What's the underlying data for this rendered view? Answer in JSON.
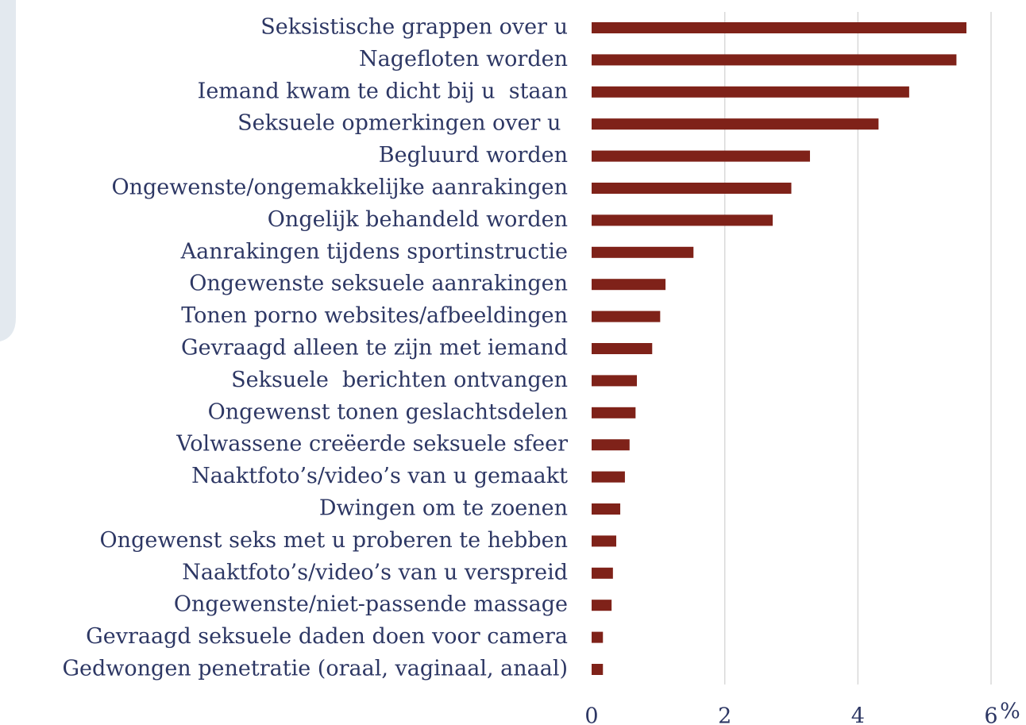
{
  "chart_data": {
    "type": "barh",
    "categories": [
      "Seksistische grappen over u",
      "Nagefloten worden",
      "Iemand kwam te dicht bij u  staan",
      "Seksuele opmerkingen over u ",
      "Begluurd worden",
      "Ongewenste/ongemakkelijke aanrakingen",
      "Ongelijk behandeld worden",
      "Aanrakingen tijdens sportinstructie",
      "Ongewenste seksuele aanrakingen",
      "Tonen porno websites/afbeeldingen",
      "Gevraagd alleen te zijn met iemand",
      "Seksuele  berichten ontvangen",
      "Ongewenst tonen geslachtsdelen",
      "Volwassene creëerde seksuele sfeer",
      "Naaktfoto’s/video’s van u gemaakt",
      "Dwingen om te zoenen",
      "Ongewenst seks met u proberen te hebben",
      "Naaktfoto’s/video’s van u verspreid",
      "Ongewenste/niet-passende massage",
      "Gevraagd seksuele daden doen voor camera",
      "Gedwongen penetratie (oraal, vaginaal, anaal)"
    ],
    "values": [
      5.63,
      5.48,
      4.77,
      4.31,
      3.28,
      3.0,
      2.72,
      1.53,
      1.11,
      1.03,
      0.91,
      0.68,
      0.66,
      0.57,
      0.5,
      0.43,
      0.37,
      0.32,
      0.3,
      0.17,
      0.17
    ],
    "color": "#7f2219",
    "xlabel": "%",
    "xlim": [
      0,
      6
    ],
    "xticks": [
      0,
      2,
      4,
      6
    ],
    "grid": true
  }
}
